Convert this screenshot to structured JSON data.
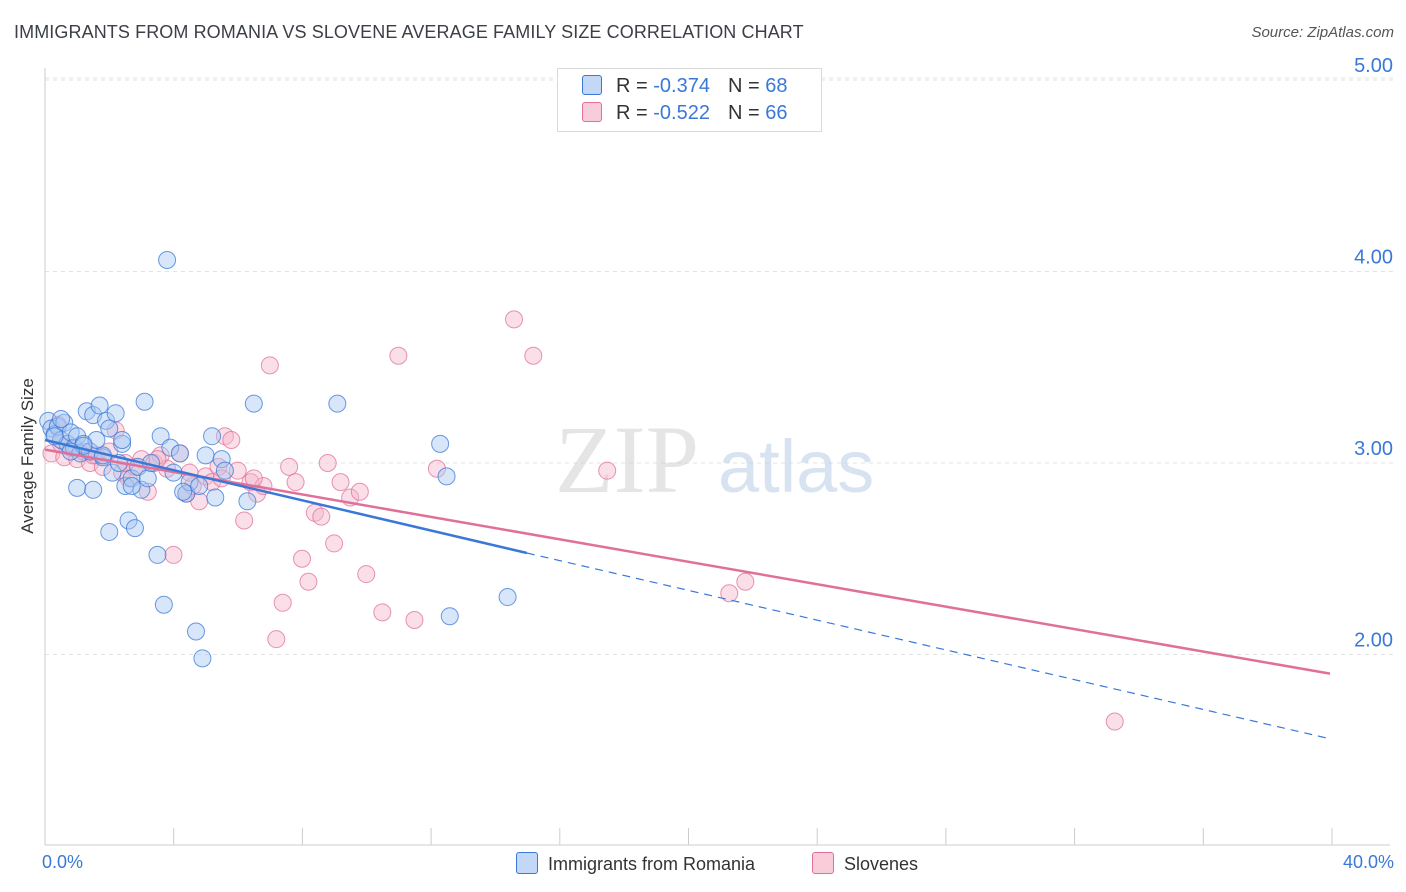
{
  "title": "IMMIGRANTS FROM ROMANIA VS SLOVENE AVERAGE FAMILY SIZE CORRELATION CHART",
  "source": "Source: ZipAtlas.com",
  "watermark": {
    "part1": "ZIP",
    "part2": "atlas"
  },
  "legend": {
    "rows": [
      {
        "r_label": "R = ",
        "r_value": "-0.374",
        "n_label": "N = ",
        "n_value": "68"
      },
      {
        "r_label": "R = ",
        "r_value": "-0.522",
        "n_label": "N = ",
        "n_value": "66"
      }
    ]
  },
  "bottom_legend": [
    "Immigrants from Romania",
    "Slovenes"
  ],
  "x_axis": {
    "min_label": "0.0%",
    "max_label": "40.0%"
  },
  "y_axis": {
    "label": "Average Family Size"
  },
  "colors": {
    "blue": "#3a78d8",
    "pink": "#e0709a",
    "blue_fill": "#a9c8f2",
    "pink_fill": "#f5b8cc"
  },
  "chart_data": {
    "type": "scatter",
    "xlabel": "",
    "ylabel": "Average Family Size",
    "xlim": [
      0,
      40
    ],
    "ylim": [
      1.0,
      5.2
    ],
    "y_ticks": [
      2.0,
      3.0,
      4.0,
      5.0
    ],
    "y_tick_labels": [
      "2.00",
      "3.00",
      "4.00",
      "5.00"
    ],
    "grid": true,
    "legend_position": "top-center",
    "series": [
      {
        "name": "Immigrants from Romania",
        "r": -0.374,
        "n": 68,
        "trend": {
          "x0": 0,
          "y0": 3.12,
          "x1": 15,
          "y1": 2.53,
          "dashed_to_x": 40,
          "dashed_to_y": 1.56
        },
        "points": [
          [
            0.1,
            3.22
          ],
          [
            0.2,
            3.18
          ],
          [
            0.3,
            3.15
          ],
          [
            0.4,
            3.19
          ],
          [
            0.5,
            3.12
          ],
          [
            0.6,
            3.21
          ],
          [
            0.7,
            3.1
          ],
          [
            0.8,
            3.16
          ],
          [
            0.9,
            3.08
          ],
          [
            1.0,
            3.14
          ],
          [
            1.1,
            3.05
          ],
          [
            1.2,
            3.1
          ],
          [
            1.3,
            3.27
          ],
          [
            1.4,
            3.06
          ],
          [
            1.5,
            3.25
          ],
          [
            1.6,
            3.12
          ],
          [
            1.7,
            3.3
          ],
          [
            1.8,
            3.03
          ],
          [
            1.9,
            3.22
          ],
          [
            2.0,
            3.18
          ],
          [
            2.1,
            2.95
          ],
          [
            2.2,
            3.26
          ],
          [
            2.3,
            3.0
          ],
          [
            2.4,
            3.1
          ],
          [
            2.5,
            2.88
          ],
          [
            2.6,
            2.7
          ],
          [
            2.7,
            2.92
          ],
          [
            2.8,
            2.66
          ],
          [
            2.9,
            2.98
          ],
          [
            3.0,
            2.86
          ],
          [
            3.1,
            3.32
          ],
          [
            3.2,
            2.92
          ],
          [
            3.3,
            3.0
          ],
          [
            3.5,
            2.52
          ],
          [
            3.6,
            3.14
          ],
          [
            3.7,
            2.26
          ],
          [
            3.8,
            4.06
          ],
          [
            3.9,
            3.08
          ],
          [
            4.0,
            2.95
          ],
          [
            4.2,
            3.05
          ],
          [
            4.4,
            2.84
          ],
          [
            4.5,
            2.9
          ],
          [
            4.7,
            2.12
          ],
          [
            4.8,
            2.88
          ],
          [
            4.9,
            1.98
          ],
          [
            5.0,
            3.04
          ],
          [
            5.2,
            3.14
          ],
          [
            5.3,
            2.82
          ],
          [
            5.5,
            3.02
          ],
          [
            5.6,
            2.96
          ],
          [
            1.0,
            2.87
          ],
          [
            1.5,
            2.86
          ],
          [
            2.0,
            2.64
          ],
          [
            2.4,
            3.12
          ],
          [
            0.5,
            3.23
          ],
          [
            0.3,
            3.14
          ],
          [
            1.2,
            3.09
          ],
          [
            6.3,
            2.8
          ],
          [
            6.5,
            3.31
          ],
          [
            9.1,
            3.31
          ],
          [
            12.3,
            3.1
          ],
          [
            12.5,
            2.93
          ],
          [
            12.6,
            2.2
          ],
          [
            14.4,
            2.3
          ],
          [
            0.8,
            3.06
          ],
          [
            1.8,
            3.04
          ],
          [
            2.7,
            2.88
          ],
          [
            4.3,
            2.85
          ]
        ]
      },
      {
        "name": "Slovenes",
        "r": -0.522,
        "n": 66,
        "trend": {
          "x0": 0,
          "y0": 3.07,
          "x1": 40,
          "y1": 1.9
        },
        "points": [
          [
            0.2,
            3.05
          ],
          [
            0.4,
            3.2
          ],
          [
            0.6,
            3.03
          ],
          [
            0.8,
            3.08
          ],
          [
            1.0,
            3.02
          ],
          [
            1.2,
            3.06
          ],
          [
            1.4,
            3.0
          ],
          [
            1.6,
            3.04
          ],
          [
            1.8,
            2.98
          ],
          [
            2.0,
            3.06
          ],
          [
            2.2,
            3.17
          ],
          [
            2.4,
            2.95
          ],
          [
            2.6,
            2.92
          ],
          [
            2.8,
            2.98
          ],
          [
            3.0,
            3.02
          ],
          [
            3.2,
            2.85
          ],
          [
            3.4,
            3.0
          ],
          [
            3.6,
            3.04
          ],
          [
            3.8,
            2.97
          ],
          [
            4.0,
            2.52
          ],
          [
            4.2,
            3.05
          ],
          [
            4.4,
            2.84
          ],
          [
            4.6,
            2.88
          ],
          [
            4.8,
            2.8
          ],
          [
            5.0,
            2.93
          ],
          [
            5.2,
            2.9
          ],
          [
            5.4,
            2.98
          ],
          [
            5.6,
            3.14
          ],
          [
            5.8,
            3.12
          ],
          [
            6.0,
            2.96
          ],
          [
            6.2,
            2.7
          ],
          [
            6.4,
            2.9
          ],
          [
            6.6,
            2.84
          ],
          [
            6.8,
            2.88
          ],
          [
            7.0,
            3.51
          ],
          [
            7.2,
            2.08
          ],
          [
            7.4,
            2.27
          ],
          [
            7.6,
            2.98
          ],
          [
            7.8,
            2.9
          ],
          [
            8.0,
            2.5
          ],
          [
            8.2,
            2.38
          ],
          [
            8.4,
            2.74
          ],
          [
            8.6,
            2.72
          ],
          [
            8.8,
            3.0
          ],
          [
            9.0,
            2.58
          ],
          [
            9.2,
            2.9
          ],
          [
            9.5,
            2.82
          ],
          [
            9.8,
            2.85
          ],
          [
            10.0,
            2.42
          ],
          [
            10.5,
            2.22
          ],
          [
            11.0,
            3.56
          ],
          [
            11.5,
            2.18
          ],
          [
            12.2,
            2.97
          ],
          [
            14.6,
            3.75
          ],
          [
            15.2,
            3.56
          ],
          [
            17.5,
            2.96
          ],
          [
            21.3,
            2.32
          ],
          [
            21.8,
            2.38
          ],
          [
            33.3,
            1.65
          ],
          [
            0.5,
            3.1
          ],
          [
            1.5,
            3.04
          ],
          [
            2.5,
            3.0
          ],
          [
            3.5,
            3.02
          ],
          [
            4.5,
            2.95
          ],
          [
            5.5,
            2.92
          ],
          [
            6.5,
            2.92
          ]
        ]
      }
    ]
  }
}
